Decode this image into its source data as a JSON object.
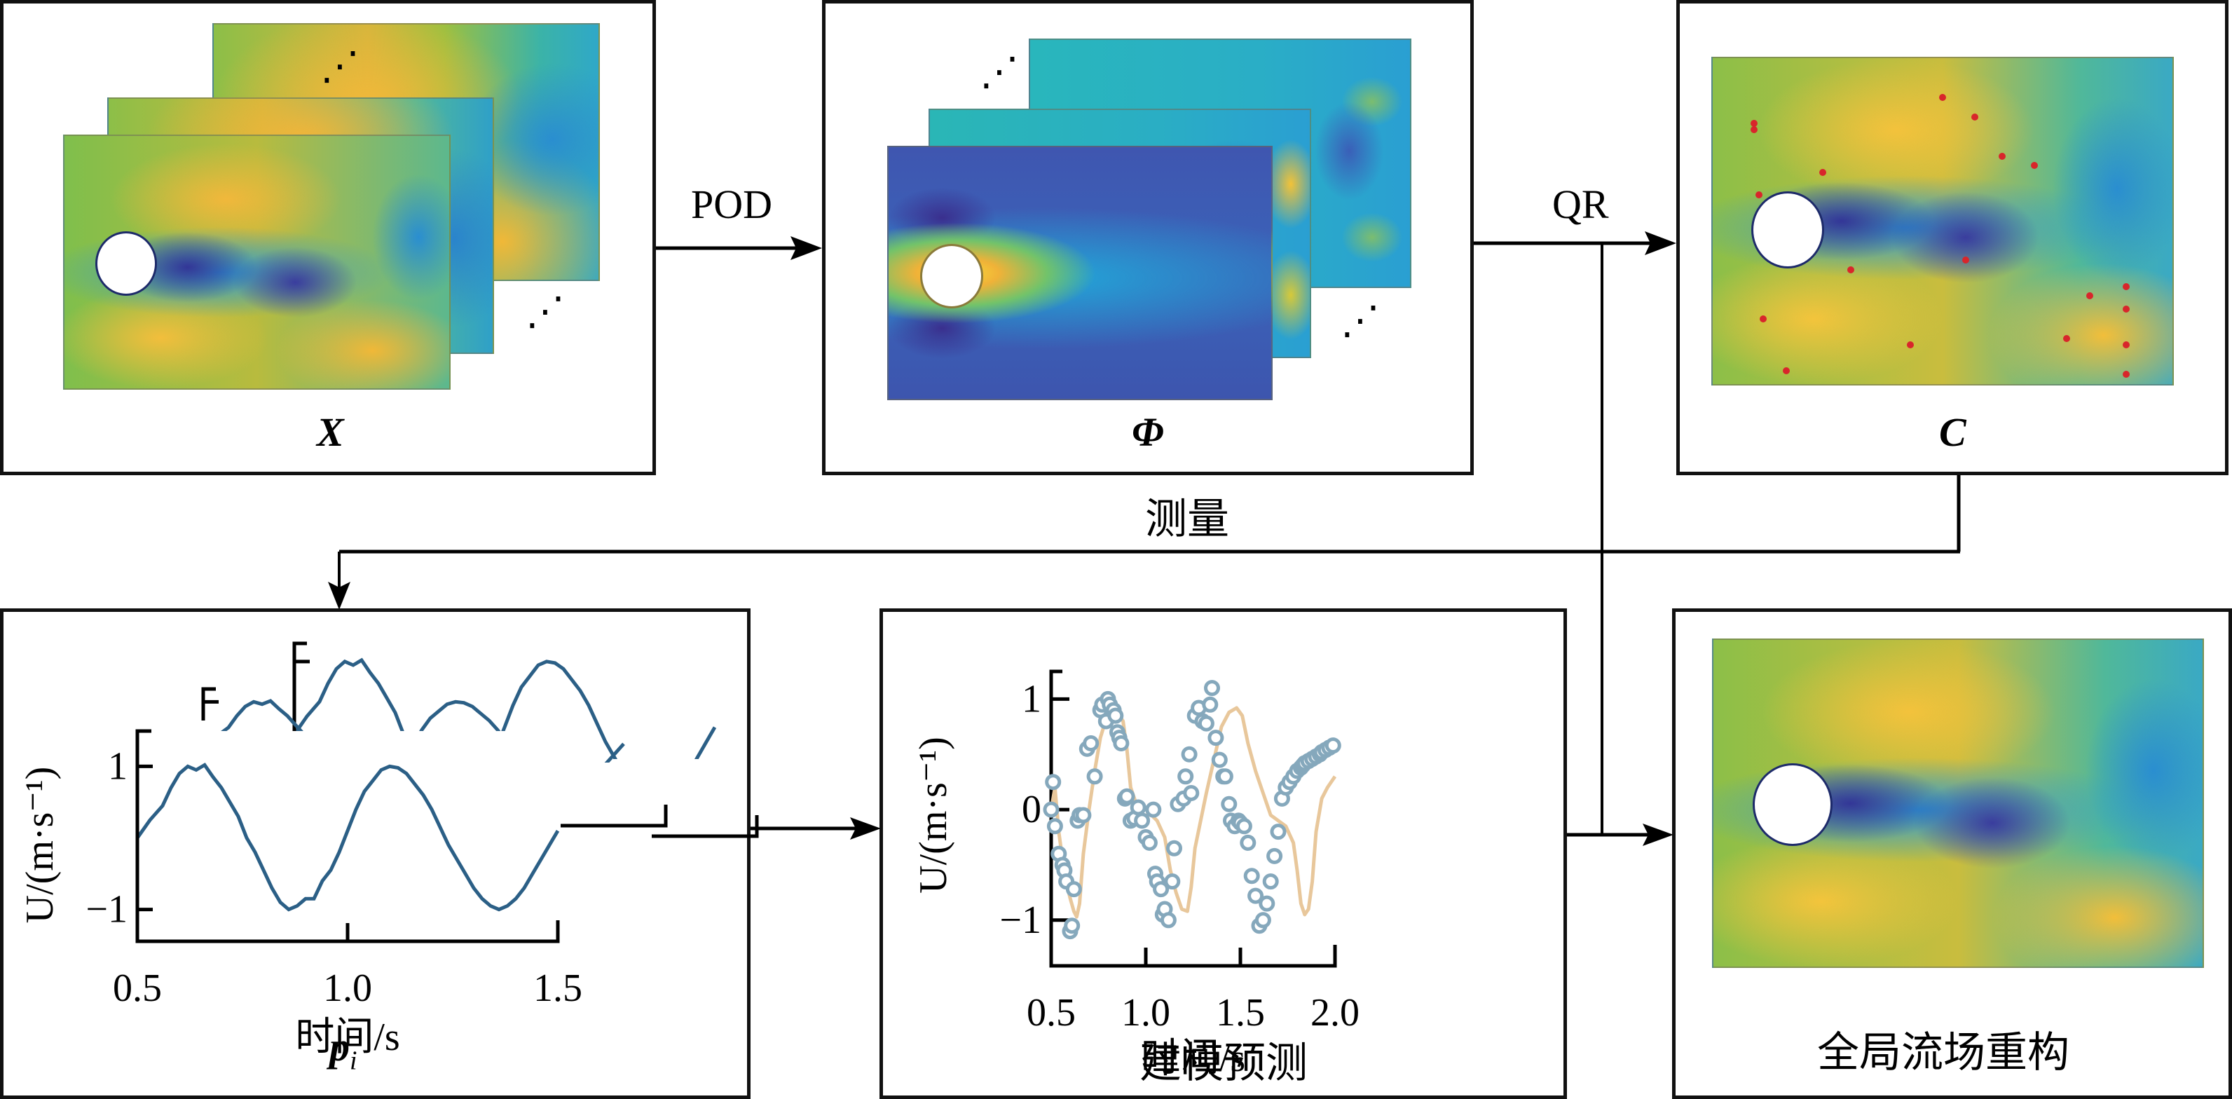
{
  "diagram": {
    "steps": {
      "snapshots": {
        "symbol": "X"
      },
      "pod_modes": {
        "symbol": "Φ",
        "caption": "测量"
      },
      "sensors": {
        "symbol": "C",
        "sensor_count": 22
      },
      "time_coeffs": {
        "symbol": "p",
        "subscript": "i"
      },
      "modeling": {
        "caption": "建模预测"
      },
      "reconstruction": {
        "caption": "全局流场重构"
      }
    },
    "edges": [
      {
        "from": "snapshots",
        "to": "pod_modes",
        "label": "POD"
      },
      {
        "from": "pod_modes",
        "to": "sensors",
        "label": "QR"
      },
      {
        "from": "sensors",
        "to": "time_coeffs",
        "label": ""
      },
      {
        "from": "time_coeffs",
        "to": "modeling",
        "label": ""
      },
      {
        "from": "modeling",
        "to": "reconstruction",
        "label": ""
      },
      {
        "from": "pod_modes",
        "to": "reconstruction",
        "label": ""
      }
    ],
    "ellipsis": "⋰",
    "colormap": {
      "low": "#3b3a9c",
      "mid_low": "#2a9ad8",
      "mid": "#2fbab0",
      "mid_high": "#8cc04a",
      "high": "#f2c035"
    },
    "sensor_color": "#d8262b"
  },
  "chart_data": [
    {
      "type": "line",
      "name": "time_coeffs",
      "title": "",
      "xlabel": "时间/s",
      "ylabel": "U/(m·s⁻¹)",
      "xlim": [
        0.5,
        1.5
      ],
      "ylim": [
        -1.2,
        1.2
      ],
      "xticks": [
        "0.5",
        "1.0",
        "1.5"
      ],
      "yticks": [
        "−1",
        "1"
      ],
      "ytick_values": [
        -1,
        1
      ],
      "xtick_values": [
        0.5,
        1.0,
        1.5
      ],
      "series_color": "#2b5f86",
      "stack_count": 3,
      "series": [
        {
          "name": "p_1",
          "x": [
            0.5,
            0.53,
            0.56,
            0.58,
            0.6,
            0.62,
            0.64,
            0.66,
            0.68,
            0.7,
            0.72,
            0.74,
            0.76,
            0.78,
            0.8,
            0.82,
            0.84,
            0.86,
            0.88,
            0.9,
            0.92,
            0.94,
            0.96,
            0.98,
            1.0,
            1.02,
            1.04,
            1.06,
            1.08,
            1.1,
            1.12,
            1.14,
            1.16,
            1.18,
            1.2,
            1.22,
            1.24,
            1.26,
            1.28,
            1.3,
            1.32,
            1.34,
            1.36,
            1.38,
            1.4,
            1.42,
            1.44,
            1.46,
            1.48,
            1.5
          ],
          "y": [
            0.0,
            0.25,
            0.45,
            0.7,
            0.9,
            1.0,
            0.95,
            1.02,
            0.85,
            0.7,
            0.5,
            0.3,
            0.0,
            -0.2,
            -0.45,
            -0.7,
            -0.9,
            -1.0,
            -0.95,
            -0.85,
            -0.85,
            -0.6,
            -0.45,
            -0.2,
            0.1,
            0.4,
            0.65,
            0.8,
            0.95,
            1.0,
            0.98,
            0.9,
            0.75,
            0.6,
            0.4,
            0.15,
            -0.1,
            -0.3,
            -0.5,
            -0.7,
            -0.85,
            -0.95,
            -1.0,
            -0.95,
            -0.85,
            -0.7,
            -0.5,
            -0.3,
            -0.1,
            0.1
          ]
        }
      ]
    },
    {
      "type": "scatter",
      "name": "modeling_prediction",
      "title": "",
      "xlabel": "时间/s",
      "ylabel": "U/(m·s⁻¹)",
      "xlim": [
        0.5,
        2.0
      ],
      "ylim": [
        -1.35,
        1.25
      ],
      "xticks": [
        "0.5",
        "1.0",
        "1.5",
        "2.0"
      ],
      "xtick_values": [
        0.5,
        1.0,
        1.5,
        2.0
      ],
      "yticks": [
        "−1",
        "0",
        "1"
      ],
      "ytick_values": [
        -1,
        0,
        1
      ],
      "series": [
        {
          "name": "prediction",
          "kind": "line",
          "color": "#e8c79b",
          "x": [
            0.5,
            0.52,
            0.54,
            0.56,
            0.58,
            0.6,
            0.62,
            0.635,
            0.65,
            0.67,
            0.7,
            0.73,
            0.76,
            0.79,
            0.82,
            0.85,
            0.88,
            0.9,
            0.92,
            0.95,
            0.98,
            1.0,
            1.03,
            1.06,
            1.1,
            1.13,
            1.16,
            1.19,
            1.22,
            1.24,
            1.26,
            1.29,
            1.32,
            1.36,
            1.4,
            1.44,
            1.48,
            1.51,
            1.54,
            1.58,
            1.62,
            1.66,
            1.7,
            1.74,
            1.78,
            1.8,
            1.82,
            1.84,
            1.86,
            1.88,
            1.9,
            1.93,
            1.96,
            2.0
          ],
          "y": [
            0.0,
            0.2,
            -0.2,
            -0.45,
            -0.65,
            -0.8,
            -0.92,
            -0.97,
            -0.85,
            -0.4,
            0.0,
            0.35,
            0.65,
            0.82,
            0.88,
            0.88,
            0.8,
            0.55,
            0.2,
            0.05,
            -0.05,
            -0.05,
            -0.05,
            -0.1,
            -0.25,
            -0.55,
            -0.75,
            -0.9,
            -0.92,
            -0.7,
            -0.35,
            -0.1,
            0.15,
            0.45,
            0.75,
            0.88,
            0.92,
            0.85,
            0.6,
            0.35,
            0.15,
            -0.05,
            -0.1,
            -0.15,
            -0.3,
            -0.55,
            -0.85,
            -0.95,
            -0.9,
            -0.65,
            -0.2,
            0.1,
            0.2,
            0.3
          ]
        },
        {
          "name": "samples",
          "kind": "scatter",
          "color": "#85a8bc",
          "x": [
            0.5,
            0.51,
            0.52,
            0.54,
            0.56,
            0.57,
            0.58,
            0.6,
            0.61,
            0.62,
            0.64,
            0.65,
            0.67,
            0.69,
            0.71,
            0.73,
            0.76,
            0.77,
            0.79,
            0.8,
            0.81,
            0.83,
            0.84,
            0.85,
            0.86,
            0.87,
            0.89,
            0.9,
            0.92,
            0.94,
            0.96,
            0.98,
            1.0,
            1.02,
            1.04,
            1.05,
            1.06,
            1.08,
            1.09,
            1.1,
            1.12,
            1.14,
            1.15,
            1.17,
            1.2,
            1.21,
            1.23,
            1.24,
            1.26,
            1.28,
            1.3,
            1.32,
            1.34,
            1.35,
            1.37,
            1.39,
            1.41,
            1.42,
            1.44,
            1.45,
            1.47,
            1.49,
            1.5,
            1.52,
            1.54,
            1.56,
            1.58,
            1.6,
            1.62,
            1.64,
            1.66,
            1.68,
            1.7,
            1.72,
            1.74,
            1.76,
            1.78,
            1.8,
            1.82,
            1.83,
            1.84,
            1.86,
            1.88,
            1.9,
            1.92,
            1.93,
            1.95,
            1.97,
            1.99
          ],
          "y": [
            0.0,
            0.25,
            -0.15,
            -0.4,
            -0.5,
            -0.55,
            -0.65,
            -1.1,
            -1.05,
            -0.72,
            -0.1,
            -0.05,
            -0.05,
            0.55,
            0.6,
            0.3,
            0.9,
            0.95,
            0.8,
            1.0,
            0.95,
            0.9,
            0.85,
            0.7,
            0.65,
            0.6,
            0.1,
            0.12,
            -0.1,
            -0.08,
            0.02,
            -0.1,
            -0.25,
            -0.3,
            0.0,
            -0.58,
            -0.65,
            -0.72,
            -0.95,
            -0.9,
            -1.0,
            -0.65,
            -0.35,
            0.05,
            0.1,
            0.3,
            0.5,
            0.15,
            0.85,
            0.92,
            0.8,
            0.78,
            0.95,
            1.1,
            0.65,
            0.45,
            0.3,
            0.3,
            0.05,
            -0.1,
            -0.15,
            -0.1,
            -0.12,
            -0.15,
            -0.3,
            -0.6,
            -0.78,
            -1.05,
            -1.0,
            -0.85,
            -0.65,
            -0.42,
            -0.2,
            0.1,
            0.2,
            0.25,
            0.3,
            0.35,
            0.38,
            0.4,
            0.42,
            0.44,
            0.46,
            0.48,
            0.5,
            0.52,
            0.54,
            0.56,
            0.58
          ]
        }
      ]
    }
  ]
}
